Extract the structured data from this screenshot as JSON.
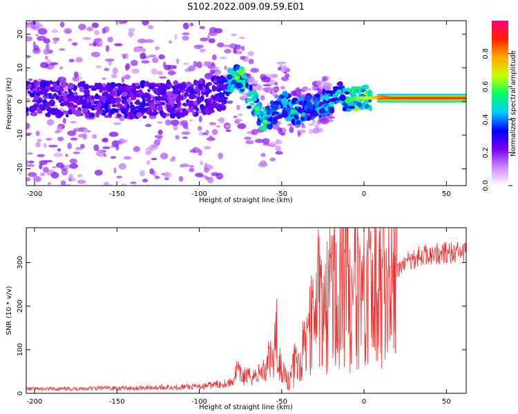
{
  "title": "S102.2022.009.09.59.E01",
  "chart_data": [
    {
      "type": "heatmap",
      "xlabel": "Height of straight line (km)",
      "ylabel": "Frequency (Hz)",
      "xlim": [
        -205,
        62
      ],
      "ylim": [
        -25,
        24
      ],
      "xticks": [
        -200,
        -150,
        -100,
        -50,
        0,
        50
      ],
      "yticks": [
        -20,
        -10,
        0,
        10,
        20
      ],
      "colorbar": {
        "label": "Normalized spectral amplitude",
        "range": [
          0,
          1
        ],
        "ticks": [
          "0.0",
          "0.2",
          "0.4",
          "0.6",
          "0.8"
        ],
        "colors": [
          "#ffffff",
          "#cc88ff",
          "#7700ee",
          "#0000ff",
          "#00ccff",
          "#00ff66",
          "#ccff00",
          "#ffaa00",
          "#ff2200",
          "#ff0077"
        ]
      },
      "ridge": [
        {
          "x": -200,
          "f": 1,
          "amp": 0.3
        },
        {
          "x": -150,
          "f": 0,
          "amp": 0.3
        },
        {
          "x": -100,
          "f": 1,
          "amp": 0.3
        },
        {
          "x": -85,
          "f": 3,
          "amp": 0.35
        },
        {
          "x": -80,
          "f": 7,
          "amp": 0.55
        },
        {
          "x": -75,
          "f": 7,
          "amp": 0.6
        },
        {
          "x": -70,
          "f": 2,
          "amp": 0.5
        },
        {
          "x": -65,
          "f": -2,
          "amp": 0.55
        },
        {
          "x": -60,
          "f": -6,
          "amp": 0.55
        },
        {
          "x": -55,
          "f": -3,
          "amp": 0.45
        },
        {
          "x": -48,
          "f": -1,
          "amp": 0.45
        },
        {
          "x": -42,
          "f": -3,
          "amp": 0.5
        },
        {
          "x": -35,
          "f": -2,
          "amp": 0.45
        },
        {
          "x": -28,
          "f": -1,
          "amp": 0.45
        },
        {
          "x": -20,
          "f": 0,
          "amp": 0.5
        },
        {
          "x": -15,
          "f": 3,
          "amp": 0.45
        },
        {
          "x": -12,
          "f": 0,
          "amp": 0.55
        },
        {
          "x": -5,
          "f": 1,
          "amp": 0.6
        },
        {
          "x": 0,
          "f": 1,
          "amp": 0.65
        },
        {
          "x": 5,
          "f": 1,
          "amp": 0.7
        },
        {
          "x": 10,
          "f": 1.5,
          "amp": 0.8
        },
        {
          "x": 15,
          "f": 1,
          "amp": 0.85
        },
        {
          "x": 20,
          "f": 1,
          "amp": 0.9
        },
        {
          "x": 30,
          "f": 1,
          "amp": 0.92
        },
        {
          "x": 40,
          "f": 1,
          "amp": 0.92
        },
        {
          "x": 50,
          "f": 1,
          "amp": 0.92
        },
        {
          "x": 62,
          "f": 1,
          "amp": 0.92
        }
      ]
    },
    {
      "type": "line",
      "xlabel": "Height of straight line (km)",
      "ylabel": "SNR (10 * v/v)",
      "xlim": [
        -205,
        62
      ],
      "ylim": [
        0,
        380
      ],
      "xticks": [
        -200,
        -150,
        -100,
        -50,
        0,
        50
      ],
      "yticks": [
        0,
        100,
        200,
        300
      ],
      "color": "#ee3333",
      "series": [
        {
          "x": [
            -205,
            -180,
            -160,
            -140,
            -120,
            -100,
            -90,
            -80,
            -77,
            -75,
            -70,
            -65,
            -60,
            -57,
            -55,
            -53,
            -52,
            -50,
            -48,
            -45,
            -42,
            -40,
            -38,
            -35,
            -32,
            -30,
            -28,
            -25,
            -22,
            -20,
            -18,
            -16,
            -14,
            -12,
            -10,
            -8,
            -5,
            -3,
            -1,
            0,
            1,
            3,
            5,
            8,
            10,
            12,
            15,
            18,
            20,
            22,
            25,
            28,
            30,
            35,
            40,
            45,
            50,
            55,
            60,
            62
          ],
          "y": [
            10,
            10,
            12,
            12,
            14,
            15,
            20,
            25,
            55,
            40,
            38,
            42,
            55,
            80,
            70,
            150,
            80,
            60,
            40,
            30,
            70,
            55,
            90,
            120,
            170,
            130,
            250,
            150,
            210,
            250,
            260,
            180,
            230,
            280,
            300,
            150,
            250,
            210,
            170,
            230,
            200,
            240,
            210,
            230,
            250,
            250,
            260,
            270,
            280,
            290,
            300,
            305,
            310,
            315,
            320,
            320,
            322,
            322,
            322,
            320
          ]
        }
      ]
    }
  ]
}
